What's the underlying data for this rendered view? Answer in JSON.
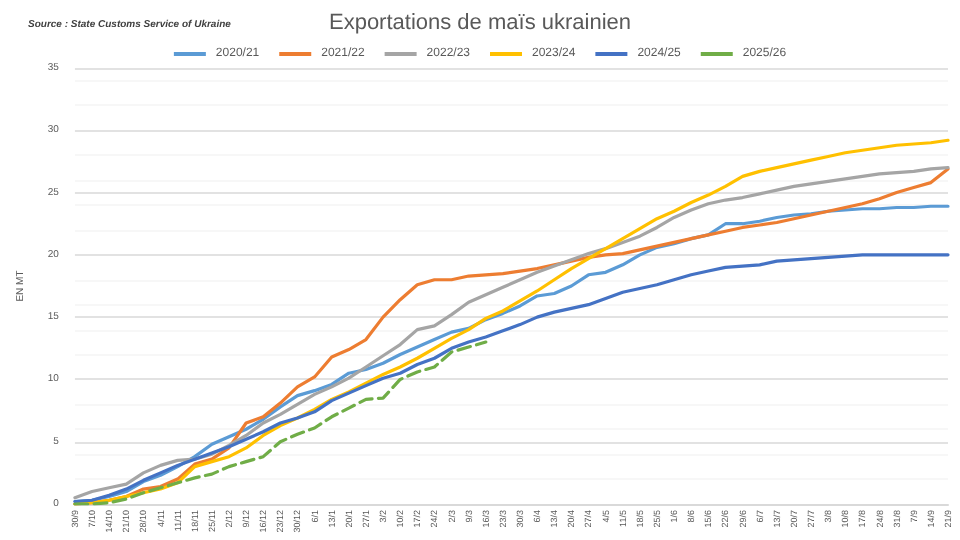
{
  "chart_data": {
    "type": "line",
    "title": "Exportations de maïs ukrainien",
    "ylabel": "EN MT",
    "annotations": [
      "Source : State Customs Service of Ukraine"
    ],
    "categories": [
      "30/9",
      "7/10",
      "14/10",
      "21/10",
      "28/10",
      "4/11",
      "11/11",
      "18/11",
      "25/11",
      "2/12",
      "9/12",
      "16/12",
      "23/12",
      "30/12",
      "6/1",
      "13/1",
      "20/1",
      "27/1",
      "3/2",
      "10/2",
      "17/2",
      "24/2",
      "2/3",
      "9/3",
      "16/3",
      "23/3",
      "30/3",
      "6/4",
      "13/4",
      "20/4",
      "27/4",
      "4/5",
      "11/5",
      "18/5",
      "25/5",
      "1/6",
      "8/6",
      "15/6",
      "22/6",
      "29/6",
      "6/7",
      "13/7",
      "20/7",
      "27/7",
      "3/8",
      "10/8",
      "17/8",
      "24/8",
      "31/8",
      "7/9",
      "14/9",
      "21/9"
    ],
    "ylim": [
      0,
      35
    ],
    "yticks": [
      0,
      5,
      10,
      15,
      20,
      25,
      30,
      35
    ],
    "grid": "y",
    "legend": "top",
    "marker": "none",
    "series": [
      {
        "name": "2020/21",
        "color": "#5b9bd5",
        "values": [
          0.2,
          0.3,
          0.6,
          1.0,
          1.8,
          2.3,
          3.0,
          3.8,
          4.8,
          5.4,
          6.0,
          6.8,
          7.8,
          8.7,
          9.1,
          9.6,
          10.5,
          10.8,
          11.3,
          12.0,
          12.6,
          13.2,
          13.8,
          14.1,
          14.8,
          15.3,
          15.9,
          16.7,
          16.9,
          17.5,
          18.4,
          18.6,
          19.2,
          20.0,
          20.6,
          20.9,
          21.3,
          21.6,
          22.5,
          22.5,
          22.7,
          23.0,
          23.2,
          23.3,
          23.5,
          23.6,
          23.7,
          23.7,
          23.8,
          23.8,
          23.9,
          23.9
        ]
      },
      {
        "name": "2021/22",
        "color": "#ed7d31",
        "values": [
          0.0,
          0.1,
          0.3,
          0.6,
          1.2,
          1.4,
          2.0,
          3.2,
          3.6,
          4.5,
          6.5,
          7.0,
          8.1,
          9.4,
          10.2,
          11.8,
          12.4,
          13.2,
          15.0,
          16.4,
          17.6,
          18.0,
          18.0,
          18.3,
          18.4,
          18.5,
          18.7,
          18.9,
          19.2,
          19.5,
          19.8,
          20.0,
          20.1,
          20.4,
          20.7,
          21.0,
          21.3,
          21.6,
          21.9,
          22.2,
          22.4,
          22.6,
          22.9,
          23.2,
          23.5,
          23.8,
          24.1,
          24.5,
          25.0,
          25.4,
          25.8,
          26.9
        ]
      },
      {
        "name": "2022/23",
        "color": "#a5a5a5",
        "values": [
          0.5,
          1.0,
          1.3,
          1.6,
          2.5,
          3.1,
          3.5,
          3.6,
          4.0,
          4.7,
          5.5,
          6.5,
          7.2,
          8.0,
          8.8,
          9.4,
          10.1,
          11.0,
          11.9,
          12.8,
          14.0,
          14.3,
          15.2,
          16.2,
          16.8,
          17.4,
          18.0,
          18.6,
          19.1,
          19.6,
          20.1,
          20.5,
          21.0,
          21.5,
          22.2,
          23.0,
          23.6,
          24.1,
          24.4,
          24.6,
          24.9,
          25.2,
          25.5,
          25.7,
          25.9,
          26.1,
          26.3,
          26.5,
          26.6,
          26.7,
          26.9,
          27.0
        ]
      },
      {
        "name": "2023/24",
        "color": "#ffc000",
        "values": [
          0.0,
          0.1,
          0.3,
          0.6,
          0.9,
          1.2,
          1.7,
          3.0,
          3.4,
          3.8,
          4.5,
          5.5,
          6.3,
          6.9,
          7.6,
          8.4,
          9.0,
          9.7,
          10.4,
          11.0,
          11.7,
          12.5,
          13.3,
          14.0,
          14.9,
          15.5,
          16.3,
          17.1,
          18.0,
          18.9,
          19.7,
          20.5,
          21.3,
          22.1,
          22.9,
          23.5,
          24.2,
          24.8,
          25.5,
          26.3,
          26.7,
          27.0,
          27.3,
          27.6,
          27.9,
          28.2,
          28.4,
          28.6,
          28.8,
          28.9,
          29.0,
          29.2
        ]
      },
      {
        "name": "2024/25",
        "color": "#4472c4",
        "values": [
          0.2,
          0.3,
          0.7,
          1.2,
          1.9,
          2.5,
          3.1,
          3.6,
          4.1,
          4.6,
          5.2,
          5.8,
          6.5,
          6.9,
          7.4,
          8.3,
          8.9,
          9.5,
          10.1,
          10.5,
          11.2,
          11.7,
          12.5,
          13.0,
          13.4,
          13.9,
          14.4,
          15.0,
          15.4,
          15.7,
          16.0,
          16.5,
          17.0,
          17.3,
          17.6,
          18.0,
          18.4,
          18.7,
          19.0,
          19.1,
          19.2,
          19.5,
          19.6,
          19.7,
          19.8,
          19.9,
          20.0,
          20.0,
          20.0,
          20.0,
          20.0,
          20.0
        ]
      },
      {
        "name": "2025/26",
        "color": "#70ad47",
        "line_style": "dashed",
        "values": [
          0.0,
          0.0,
          0.1,
          0.4,
          0.9,
          1.3,
          1.7,
          2.1,
          2.4,
          3.0,
          3.4,
          3.8,
          5.0,
          5.6,
          6.1,
          7.0,
          7.7,
          8.4,
          8.5,
          10.0,
          10.6,
          11.0,
          12.2,
          12.6,
          13.0,
          null,
          null,
          null,
          null,
          null,
          null,
          null,
          null,
          null,
          null,
          null,
          null,
          null,
          null,
          null,
          null,
          null,
          null,
          null,
          null,
          null,
          null,
          null,
          null,
          null,
          null,
          null
        ]
      }
    ]
  }
}
